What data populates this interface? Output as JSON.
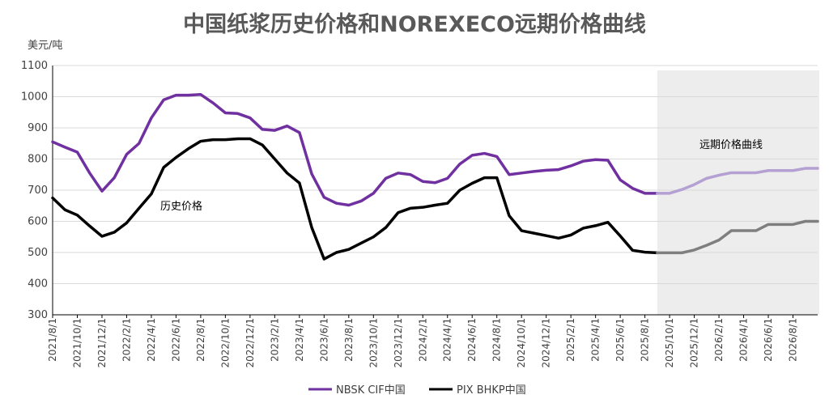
{
  "chart_data": {
    "type": "line",
    "title": "中国纸浆历史价格和NOREXECO远期价格曲线",
    "ylabel": "美元/吨",
    "ylim": [
      300,
      1100
    ],
    "yticks": [
      "300",
      "400",
      "500",
      "600",
      "700",
      "800",
      "900",
      "1000",
      "1100"
    ],
    "xticks": [
      "2021/8/1",
      "2021/10/1",
      "2021/12/1",
      "2022/2/1",
      "2022/4/1",
      "2022/6/1",
      "2022/8/1",
      "2022/10/1",
      "2022/12/1",
      "2023/2/1",
      "2023/4/1",
      "2023/6/1",
      "2023/8/1",
      "2023/10/1",
      "2023/12/1",
      "2024/2/1",
      "2024/4/1",
      "2024/6/1",
      "2024/8/1",
      "2024/10/1",
      "2024/12/1",
      "2025/2/1",
      "2025/4/1",
      "2025/6/1",
      "2025/8/1",
      "2025/10/1",
      "2025/12/1",
      "2026/2/1",
      "2026/4/1",
      "2026/6/1",
      "2026/8/1"
    ],
    "start_month": "2021/8",
    "forward_start_month": "2025/9",
    "annotations": {
      "historical": "历史价格",
      "forward": "远期价格曲线"
    },
    "colors": {
      "nbsk_hist": "#7030A0",
      "nbsk_fwd": "#B4A0D2",
      "pix_hist": "#000000",
      "pix_fwd": "#7F7F7F",
      "forward_shade": "#EDEDED",
      "grid": "#D9D9D9",
      "axis": "#000000"
    },
    "series": [
      {
        "name": "NBSK CIF中国",
        "values": [
          855,
          838,
          822,
          755,
          697,
          740,
          815,
          850,
          932,
          990,
          1005,
          1005,
          1007,
          980,
          948,
          946,
          932,
          895,
          892,
          906,
          885,
          752,
          677,
          658,
          652,
          665,
          690,
          738,
          755,
          750,
          728,
          724,
          738,
          784,
          812,
          818,
          808,
          750,
          755,
          760,
          764,
          766,
          778,
          793,
          798,
          796,
          733,
          706,
          690,
          690,
          690,
          702,
          718,
          738,
          748,
          756,
          756,
          756,
          763,
          763,
          763,
          770,
          770
        ]
      },
      {
        "name": "PIX BHKP中国",
        "values": [
          675,
          637,
          620,
          585,
          552,
          565,
          595,
          642,
          688,
          773,
          805,
          833,
          857,
          862,
          862,
          865,
          865,
          845,
          800,
          755,
          723,
          580,
          479,
          500,
          510,
          530,
          550,
          580,
          628,
          642,
          645,
          652,
          658,
          700,
          722,
          740,
          740,
          618,
          570,
          562,
          554,
          546,
          556,
          578,
          586,
          597,
          553,
          507,
          501,
          499,
          499,
          499,
          508,
          523,
          540,
          570,
          570,
          570,
          590,
          590,
          590,
          600,
          600
        ]
      }
    ],
    "forward_index": 49
  }
}
